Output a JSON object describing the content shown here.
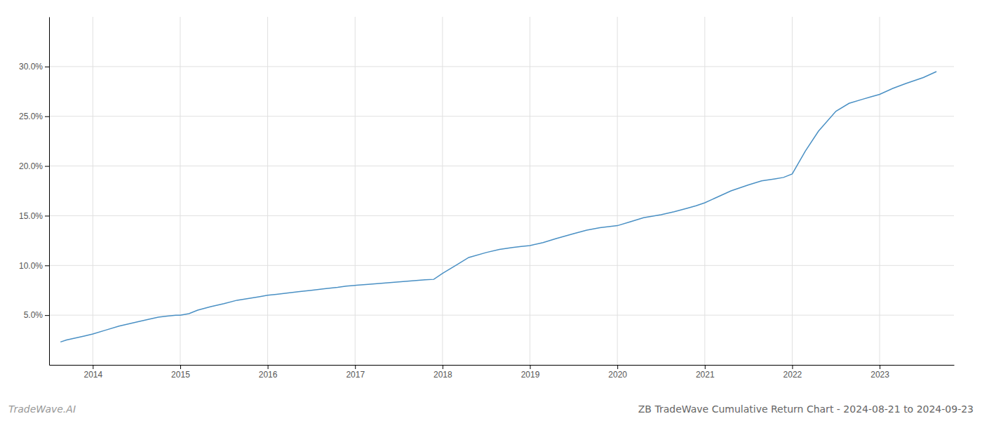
{
  "chart_data": {
    "type": "line",
    "title": "ZB TradeWave Cumulative Return Chart - 2024-08-21 to 2024-09-23",
    "annotations": [
      "TradeWave.AI"
    ],
    "color": "#4a90c4",
    "grid": true,
    "x": [
      2013.63,
      2013.7,
      2013.8,
      2013.9,
      2014.0,
      2014.15,
      2014.3,
      2014.5,
      2014.65,
      2014.75,
      2014.85,
      2014.95,
      2015.0,
      2015.1,
      2015.2,
      2015.35,
      2015.5,
      2015.65,
      2015.8,
      2015.9,
      2016.0,
      2016.1,
      2016.2,
      2016.35,
      2016.5,
      2016.65,
      2016.8,
      2016.9,
      2017.0,
      2017.15,
      2017.3,
      2017.5,
      2017.65,
      2017.8,
      2017.9,
      2018.0,
      2018.15,
      2018.3,
      2018.5,
      2018.65,
      2018.8,
      2018.9,
      2019.0,
      2019.15,
      2019.3,
      2019.5,
      2019.65,
      2019.8,
      2019.9,
      2020.0,
      2020.15,
      2020.3,
      2020.5,
      2020.65,
      2020.8,
      2020.9,
      2021.0,
      2021.15,
      2021.3,
      2021.5,
      2021.65,
      2021.8,
      2021.9,
      2022.0,
      2022.15,
      2022.3,
      2022.5,
      2022.65,
      2022.8,
      2022.9,
      2023.0,
      2023.15,
      2023.3,
      2023.5,
      2023.65
    ],
    "values": [
      2.3,
      2.5,
      2.7,
      2.9,
      3.1,
      3.5,
      3.9,
      4.3,
      4.6,
      4.8,
      4.9,
      5.0,
      5.0,
      5.15,
      5.5,
      5.85,
      6.15,
      6.5,
      6.7,
      6.85,
      7.0,
      7.1,
      7.2,
      7.35,
      7.5,
      7.65,
      7.8,
      7.92,
      8.0,
      8.1,
      8.2,
      8.35,
      8.45,
      8.55,
      8.6,
      9.2,
      10.0,
      10.8,
      11.3,
      11.6,
      11.8,
      11.9,
      12.0,
      12.3,
      12.7,
      13.2,
      13.55,
      13.8,
      13.9,
      14.0,
      14.4,
      14.8,
      15.1,
      15.4,
      15.75,
      16.0,
      16.3,
      16.9,
      17.5,
      18.1,
      18.5,
      18.7,
      18.85,
      19.2,
      21.5,
      23.5,
      25.5,
      26.3,
      26.7,
      26.95,
      27.2,
      27.8,
      28.3,
      28.9,
      29.5
    ],
    "xlim": [
      2013.5,
      2023.85
    ],
    "ylim": [
      0.0,
      35.0
    ],
    "xticks": [
      2014,
      2015,
      2016,
      2017,
      2018,
      2019,
      2020,
      2021,
      2022,
      2023
    ],
    "yticks": [
      {
        "value": 5.0,
        "label": "5.0%"
      },
      {
        "value": 10.0,
        "label": "10.0%"
      },
      {
        "value": 15.0,
        "label": "15.0%"
      },
      {
        "value": 20.0,
        "label": "20.0%"
      },
      {
        "value": 25.0,
        "label": "25.0%"
      },
      {
        "value": 30.0,
        "label": "30.0%"
      }
    ]
  }
}
